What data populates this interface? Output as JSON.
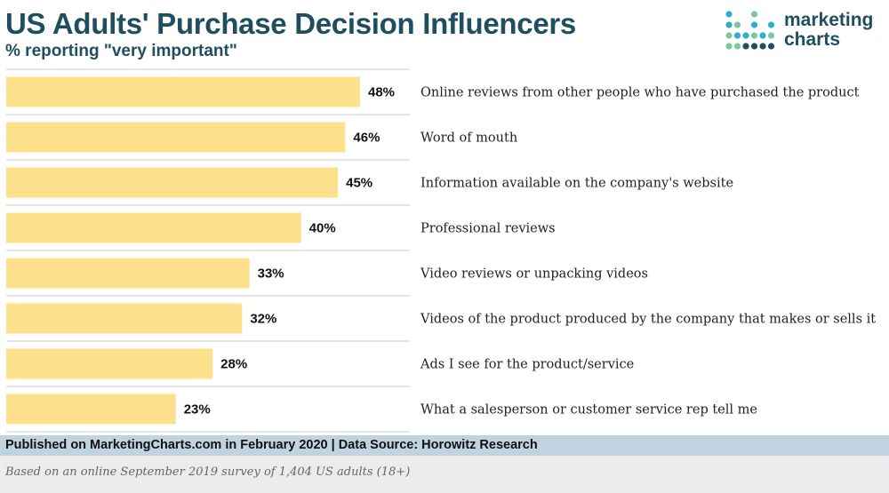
{
  "header": {
    "title": "US Adults' Purchase Decision Influencers",
    "subtitle": "% reporting \"very important\""
  },
  "logo": {
    "line1": "marketing",
    "line2": "charts",
    "dot_colors": [
      "#2bb0c9",
      "#2bb0c9",
      "#7cc7a0",
      "#2bb0c9",
      "#1f4e5f",
      "#7cc7a0"
    ]
  },
  "colors": {
    "bar": "#fde08b",
    "grid": "#c9c9c9",
    "title": "#1f4e5f",
    "footer_bg": "#bfd3e0",
    "note_bg": "#ececec"
  },
  "chart_data": {
    "type": "bar",
    "orientation": "horizontal",
    "categories": [
      "Online reviews from other people who have purchased the product",
      "Word of mouth",
      "Information available on the company's website",
      "Professional reviews",
      "Video reviews or unpacking videos",
      "Videos of the product produced by the company that makes or sells it",
      "Ads I see for the product/service",
      "What a salesperson or customer service rep tell me"
    ],
    "values": [
      48,
      46,
      45,
      40,
      33,
      32,
      28,
      23
    ],
    "value_labels": [
      "48%",
      "46%",
      "45%",
      "40%",
      "33%",
      "32%",
      "28%",
      "23%"
    ],
    "xlim": [
      0,
      55
    ],
    "grid": true,
    "legend": "none"
  },
  "footer": {
    "published": "Published on MarketingCharts.com in February 2020 | Data Source: Horowitz Research",
    "note": "Based on an online September 2019 survey of 1,404 US adults (18+)"
  }
}
